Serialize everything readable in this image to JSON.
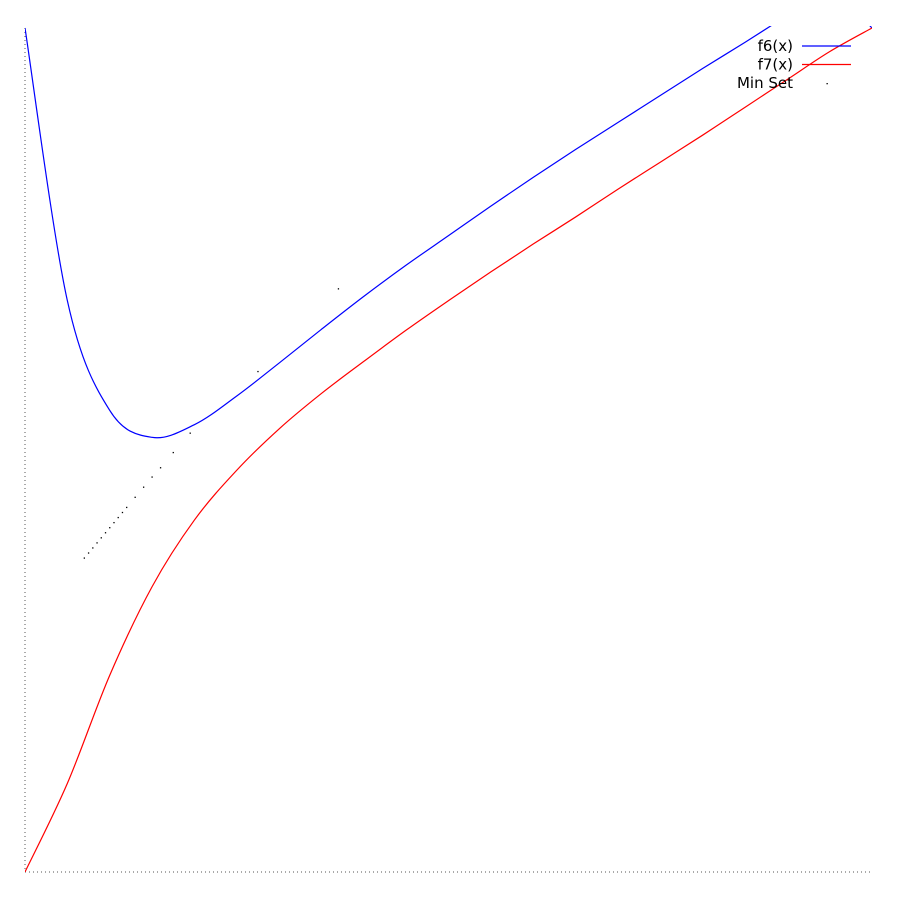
{
  "chart_data": {
    "type": "line",
    "title": "",
    "xlabel": "",
    "ylabel": "",
    "xlim": [
      0,
      1
    ],
    "ylim": [
      0,
      1
    ],
    "grid": false,
    "axes_style": "dotted",
    "legend_position": "top-right",
    "series": [
      {
        "name": "f6(x)",
        "color": "#0000ff",
        "style": "line",
        "x": [
          0,
          0.05,
          0.1,
          0.15,
          0.2,
          0.25,
          0.3,
          0.35,
          0.4,
          0.45,
          0.5,
          0.55,
          0.6,
          0.65,
          0.7,
          0.75,
          0.8,
          0.85,
          0.9,
          0.95,
          1.0
        ],
        "y": [
          1.0,
          0.677,
          0.547,
          0.515,
          0.53,
          0.564,
          0.603,
          0.643,
          0.682,
          0.719,
          0.754,
          0.789,
          0.823,
          0.856,
          0.888,
          0.92,
          0.952,
          0.983,
          1.015,
          1.047,
          1.0
        ]
      },
      {
        "name": "f7(x)",
        "color": "#ff0000",
        "style": "line",
        "x": [
          0,
          0.05,
          0.1,
          0.15,
          0.2,
          0.25,
          0.3,
          0.35,
          0.4,
          0.45,
          0.5,
          0.55,
          0.6,
          0.65,
          0.7,
          0.75,
          0.8,
          0.85,
          0.9,
          0.95,
          1.0
        ],
        "y": [
          0,
          0.105,
          0.233,
          0.338,
          0.417,
          0.476,
          0.525,
          0.567,
          0.605,
          0.642,
          0.677,
          0.711,
          0.744,
          0.776,
          0.809,
          0.841,
          0.873,
          0.906,
          0.939,
          0.972,
          1.0
        ]
      },
      {
        "name": "Min Set",
        "color": "#000000",
        "style": "points",
        "x": [
          0.07,
          0.075,
          0.08,
          0.085,
          0.09,
          0.095,
          0.1,
          0.105,
          0.11,
          0.115,
          0.12,
          0.13,
          0.14,
          0.15,
          0.16,
          0.175,
          0.195,
          0.275,
          0.37
        ],
        "y": [
          0.372,
          0.378,
          0.384,
          0.39,
          0.396,
          0.402,
          0.408,
          0.414,
          0.42,
          0.426,
          0.432,
          0.444,
          0.456,
          0.468,
          0.479,
          0.497,
          0.52,
          0.593,
          0.691
        ]
      }
    ]
  }
}
